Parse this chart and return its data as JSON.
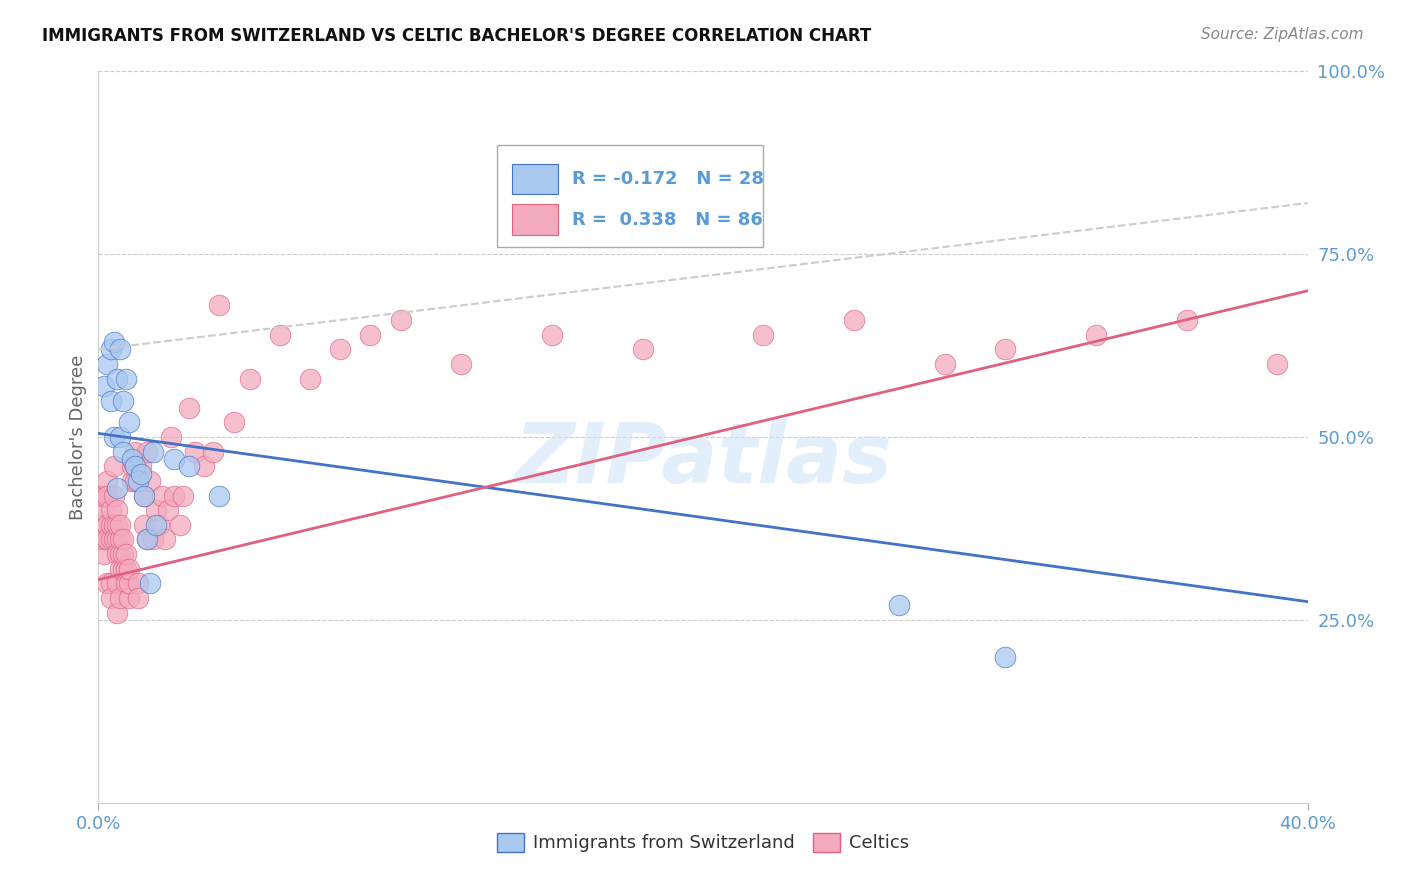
{
  "title": "IMMIGRANTS FROM SWITZERLAND VS CELTIC BACHELOR'S DEGREE CORRELATION CHART",
  "source": "Source: ZipAtlas.com",
  "xlabel_blue": "Immigrants from Switzerland",
  "xlabel_pink": "Celtics",
  "ylabel": "Bachelor's Degree",
  "R_blue": -0.172,
  "N_blue": 28,
  "R_pink": 0.338,
  "N_pink": 86,
  "xlim": [
    0.0,
    0.4
  ],
  "ylim": [
    0.0,
    1.0
  ],
  "yticks": [
    0.25,
    0.5,
    0.75,
    1.0
  ],
  "ytick_labels": [
    "25.0%",
    "50.0%",
    "75.0%",
    "100.0%"
  ],
  "xticks": [
    0.0,
    0.4
  ],
  "xtick_labels": [
    "0.0%",
    "40.0%"
  ],
  "color_blue": "#a8c8f0",
  "color_pink": "#f4aabe",
  "color_blue_line": "#4472c4",
  "color_pink_line": "#e06080",
  "color_axis_text": "#5b9bd5",
  "background_color": "#ffffff",
  "watermark": "ZIPatlas",
  "blue_line_x": [
    0.0,
    0.4
  ],
  "blue_line_y": [
    0.505,
    0.275
  ],
  "pink_line_x": [
    0.0,
    0.4
  ],
  "pink_line_y": [
    0.305,
    0.7
  ],
  "dash_line_x": [
    0.0,
    0.4
  ],
  "dash_line_y": [
    0.62,
    0.82
  ],
  "blue_points_x": [
    0.002,
    0.003,
    0.004,
    0.004,
    0.005,
    0.005,
    0.006,
    0.006,
    0.007,
    0.007,
    0.008,
    0.008,
    0.009,
    0.01,
    0.011,
    0.012,
    0.013,
    0.014,
    0.015,
    0.016,
    0.017,
    0.018,
    0.019,
    0.025,
    0.03,
    0.04,
    0.265,
    0.3
  ],
  "blue_points_y": [
    0.57,
    0.6,
    0.62,
    0.55,
    0.5,
    0.63,
    0.58,
    0.43,
    0.62,
    0.5,
    0.55,
    0.48,
    0.58,
    0.52,
    0.47,
    0.46,
    0.44,
    0.45,
    0.42,
    0.36,
    0.3,
    0.48,
    0.38,
    0.47,
    0.46,
    0.42,
    0.27,
    0.2
  ],
  "pink_points_x": [
    0.001,
    0.001,
    0.001,
    0.002,
    0.002,
    0.002,
    0.002,
    0.003,
    0.003,
    0.003,
    0.003,
    0.003,
    0.004,
    0.004,
    0.004,
    0.004,
    0.004,
    0.005,
    0.005,
    0.005,
    0.005,
    0.006,
    0.006,
    0.006,
    0.006,
    0.006,
    0.006,
    0.007,
    0.007,
    0.007,
    0.007,
    0.007,
    0.008,
    0.008,
    0.008,
    0.009,
    0.009,
    0.009,
    0.01,
    0.01,
    0.01,
    0.011,
    0.011,
    0.012,
    0.012,
    0.012,
    0.013,
    0.013,
    0.014,
    0.015,
    0.015,
    0.016,
    0.016,
    0.017,
    0.018,
    0.019,
    0.02,
    0.021,
    0.022,
    0.023,
    0.024,
    0.025,
    0.027,
    0.028,
    0.03,
    0.032,
    0.035,
    0.038,
    0.04,
    0.045,
    0.05,
    0.06,
    0.07,
    0.08,
    0.09,
    0.1,
    0.12,
    0.15,
    0.18,
    0.22,
    0.25,
    0.28,
    0.3,
    0.33,
    0.36,
    0.39
  ],
  "pink_points_y": [
    0.36,
    0.42,
    0.38,
    0.34,
    0.4,
    0.36,
    0.42,
    0.44,
    0.38,
    0.42,
    0.36,
    0.3,
    0.36,
    0.38,
    0.4,
    0.3,
    0.28,
    0.38,
    0.42,
    0.46,
    0.36,
    0.36,
    0.38,
    0.4,
    0.34,
    0.3,
    0.26,
    0.34,
    0.36,
    0.38,
    0.32,
    0.28,
    0.32,
    0.34,
    0.36,
    0.3,
    0.32,
    0.34,
    0.28,
    0.3,
    0.32,
    0.44,
    0.46,
    0.44,
    0.46,
    0.48,
    0.3,
    0.28,
    0.46,
    0.38,
    0.42,
    0.48,
    0.36,
    0.44,
    0.36,
    0.4,
    0.38,
    0.42,
    0.36,
    0.4,
    0.5,
    0.42,
    0.38,
    0.42,
    0.54,
    0.48,
    0.46,
    0.48,
    0.68,
    0.52,
    0.58,
    0.64,
    0.58,
    0.62,
    0.64,
    0.66,
    0.6,
    0.64,
    0.62,
    0.64,
    0.66,
    0.6,
    0.62,
    0.64,
    0.66,
    0.6
  ]
}
